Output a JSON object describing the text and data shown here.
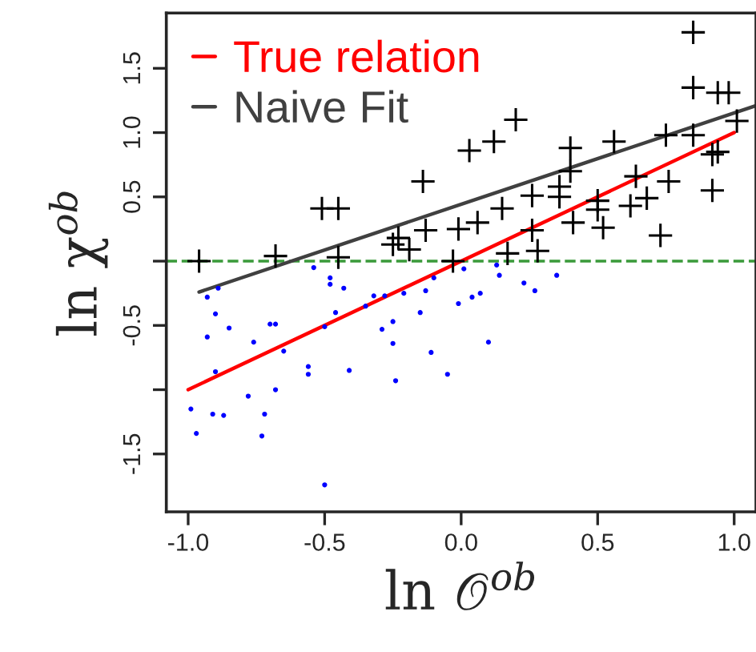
{
  "chart_data": {
    "type": "scatter",
    "xlabel": "ln 𝒪$^{ob}$",
    "ylabel": "ln χ$^{ob}$",
    "xlim": [
      -1.08,
      1.08
    ],
    "ylim": [
      -1.95,
      1.93
    ],
    "xticks": [
      {
        "value": -1.0,
        "label": "-1.0"
      },
      -0.5,
      {
        "value": 0,
        "label": "0.0"
      },
      0.5,
      {
        "value": 1,
        "label": "1.0"
      }
    ],
    "yticks": [
      {
        "value": -1.5,
        "label": "-1.5"
      },
      {
        "value": -1.0,
        "label": null
      },
      {
        "value": -0.5,
        "label": "-0.5"
      },
      {
        "value": 0,
        "label": null
      },
      {
        "value": 0.5,
        "label": "0.5"
      },
      {
        "value": 1.0,
        "label": "1.0"
      },
      {
        "value": 1.5,
        "label": "1.5"
      }
    ],
    "grid": false,
    "legend": "top left",
    "series": [
      {
        "marker": "cross",
        "color": "#000000",
        "x": [
          -0.96,
          -0.68,
          -0.51,
          -0.45,
          -0.45,
          -0.14,
          -0.25,
          -0.23,
          -0.19,
          -0.13,
          -0.01,
          0.06,
          0.03,
          0.12,
          0.2,
          0.15,
          0.17,
          -0.03,
          0.26,
          0.26,
          0.28,
          0.36,
          0.36,
          0.4,
          0.4,
          0.41,
          0.5,
          0.5,
          0.52,
          0.56,
          0.62,
          0.64,
          0.68,
          0.73,
          0.75,
          0.76,
          0.85,
          0.85,
          0.85,
          0.92,
          0.92,
          0.94,
          0.94,
          0.98,
          1.01
        ],
        "values": [
          0.0,
          0.04,
          0.41,
          0.41,
          0.03,
          0.62,
          0.13,
          0.18,
          0.09,
          0.24,
          0.25,
          0.3,
          0.86,
          0.93,
          1.1,
          0.41,
          0.06,
          0.0,
          0.51,
          0.24,
          0.08,
          0.5,
          0.58,
          0.7,
          0.88,
          0.3,
          0.47,
          0.4,
          0.26,
          0.93,
          0.43,
          0.66,
          0.49,
          0.2,
          0.98,
          0.62,
          0.98,
          1.78,
          1.35,
          0.55,
          0.83,
          0.85,
          1.31,
          1.31,
          1.09
        ]
      },
      {
        "marker": "circle",
        "color": "#0000ff",
        "x": [
          -0.93,
          -0.89,
          -0.93,
          -0.9,
          -0.85,
          -0.9,
          -0.99,
          -0.97,
          -0.91,
          -0.87,
          -0.78,
          -0.76,
          -0.73,
          -0.72,
          -0.7,
          -0.68,
          -0.68,
          -0.65,
          -0.56,
          -0.56,
          -0.54,
          -0.5,
          -0.5,
          -0.48,
          -0.48,
          -0.46,
          -0.43,
          -0.41,
          -0.35,
          -0.32,
          -0.28,
          -0.29,
          -0.25,
          -0.25,
          -0.24,
          -0.21,
          -0.15,
          -0.13,
          -0.11,
          -0.1,
          -0.05,
          -0.01,
          0.01,
          0.04,
          0.07,
          0.1,
          0.13,
          0.14,
          0.23,
          0.27,
          0.35
        ],
        "values": [
          -0.28,
          -0.21,
          -0.59,
          -0.41,
          -0.52,
          -0.86,
          -1.15,
          -1.34,
          -1.19,
          -1.2,
          -1.05,
          -0.63,
          -1.36,
          -1.19,
          -0.49,
          -0.49,
          -1.0,
          -0.7,
          -0.82,
          -0.88,
          -0.05,
          -1.74,
          -0.51,
          -0.13,
          -0.18,
          -0.4,
          -0.21,
          -0.85,
          -0.35,
          -0.27,
          -0.27,
          -0.53,
          -0.47,
          -0.64,
          -0.93,
          -0.25,
          -0.4,
          -0.23,
          -0.71,
          -0.13,
          -0.88,
          -0.33,
          -0.06,
          -0.28,
          -0.25,
          -0.63,
          -0.03,
          -0.11,
          -0.17,
          -0.23,
          -0.11
        ]
      },
      {
        "type": "line",
        "name": "True relation",
        "color": "#ff0000",
        "x": [
          -1.0,
          1.0
        ],
        "values": [
          -1.0,
          1.0
        ]
      },
      {
        "type": "line",
        "name": "Naive Fit",
        "color": "#404040",
        "x": [
          -0.96,
          1.08
        ],
        "values": [
          -0.24,
          1.21
        ]
      }
    ],
    "ref_lines": [
      {
        "axis": "y",
        "value": 0,
        "color": "#3a9a3a",
        "line_style": "dashed"
      }
    ]
  }
}
